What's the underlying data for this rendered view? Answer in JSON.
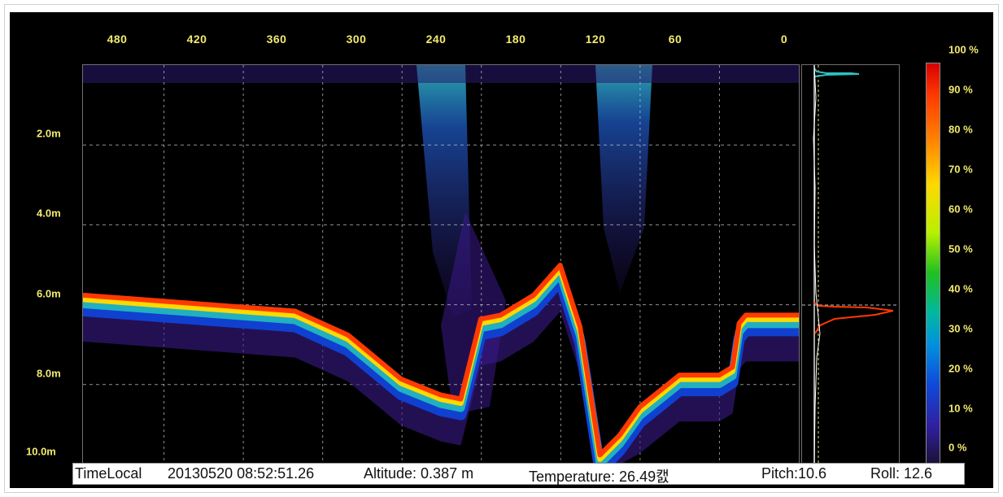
{
  "x_axis": {
    "ticks": [
      "480",
      "420",
      "360",
      "300",
      "240",
      "180",
      "120",
      "60",
      "0"
    ]
  },
  "y_axis": {
    "ticks": [
      "2.0m",
      "4.0m",
      "6.0m",
      "8.0m",
      "10.0m"
    ]
  },
  "colorbar": {
    "ticks": [
      "100 %",
      "90 %",
      "80 %",
      "70 %",
      "60 %",
      "50 %",
      "40 %",
      "30 %",
      "20 %",
      "10 %",
      "0 %"
    ]
  },
  "status": {
    "time_label": "TimeLocal",
    "time_value": "20130520 08:52:51.26",
    "altitude": "Altitude: 0.387 m",
    "temperature": "Temperature: 26.49캜",
    "pitch": "Pitch:10.6",
    "roll": "Roll: 12.6"
  },
  "chart_data": {
    "type": "heatmap",
    "x_ticks": [
      480,
      420,
      360,
      300,
      240,
      180,
      120,
      60,
      0
    ],
    "xlim": [
      0,
      540
    ],
    "y_ticks_m": [
      2.0,
      4.0,
      6.0,
      8.0,
      10.0
    ],
    "ylim_m": [
      0,
      10.0
    ],
    "colorbar_range_percent": [
      0,
      100
    ],
    "bottom_trace": {
      "x": [
        540,
        500,
        440,
        380,
        340,
        300,
        270,
        255,
        240,
        225,
        200,
        180,
        165,
        150,
        135,
        120,
        90,
        60,
        50,
        45,
        40,
        20,
        0
      ],
      "depth_m": [
        5.7,
        5.8,
        5.95,
        6.1,
        6.7,
        7.8,
        8.2,
        8.3,
        6.3,
        6.2,
        5.7,
        4.95,
        6.5,
        9.7,
        9.2,
        8.5,
        7.7,
        7.7,
        7.5,
        6.4,
        6.2,
        6.2,
        6.2
      ]
    },
    "colors": {
      "background": "#000000",
      "low_echo": "#3a1a8a",
      "high_echo": "#ff3a00",
      "tick_text": "#f2ea70"
    }
  }
}
